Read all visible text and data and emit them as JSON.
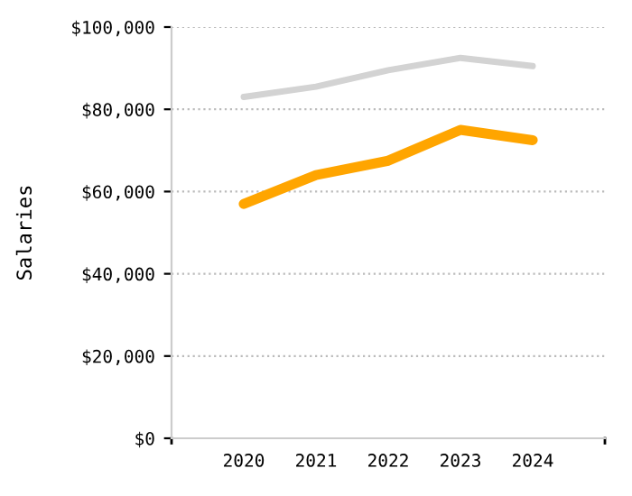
{
  "chart_data": {
    "type": "line",
    "ylabel": "Salaries",
    "categories": [
      "2020",
      "2021",
      "2022",
      "2023",
      "2024"
    ],
    "series": [
      {
        "color": "#d3d3d3",
        "values": [
          83000,
          85500,
          89500,
          92500,
          90500
        ]
      },
      {
        "color": "#ffa500",
        "values": [
          57000,
          64000,
          67500,
          75000,
          72500
        ]
      }
    ],
    "ylim": [
      0,
      100000
    ],
    "yticks": [
      {
        "value": 0,
        "label": "$0"
      },
      {
        "value": 20000,
        "label": "$20,000"
      },
      {
        "value": 40000,
        "label": "$40,000"
      },
      {
        "value": 60000,
        "label": "$60,000"
      },
      {
        "value": 80000,
        "label": "$80,000"
      },
      {
        "value": 100000,
        "label": "$100,000"
      }
    ],
    "grid": "y",
    "line_style": "solid",
    "marker": "none"
  }
}
